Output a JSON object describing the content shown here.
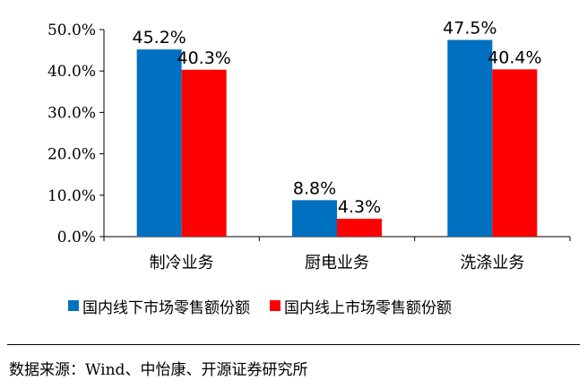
{
  "chart_data": {
    "type": "bar",
    "categories": [
      "制冷业务",
      "厨电业务",
      "洗涤业务"
    ],
    "series": [
      {
        "name": "国内线下市场零售额份额",
        "values": [
          45.2,
          8.8,
          47.5
        ],
        "labels": [
          "45.2%",
          "8.8%",
          "47.5%"
        ],
        "color": "#0070C0"
      },
      {
        "name": "国内线上市场零售额份额",
        "values": [
          40.3,
          4.3,
          40.4
        ],
        "labels": [
          "40.3%",
          "4.3%",
          "40.4%"
        ],
        "color": "#FF0000"
      }
    ],
    "ylim": [
      0,
      50
    ],
    "yticks": [
      "0.0%",
      "10.0%",
      "20.0%",
      "30.0%",
      "40.0%",
      "50.0%"
    ],
    "grid": false,
    "legend_position": "bottom"
  },
  "legend": {
    "offline": "国内线下市场零售额份额",
    "online": "国内线上市场零售额份额"
  },
  "source": "数据来源：Wind、中怡康、开源证券研究所"
}
